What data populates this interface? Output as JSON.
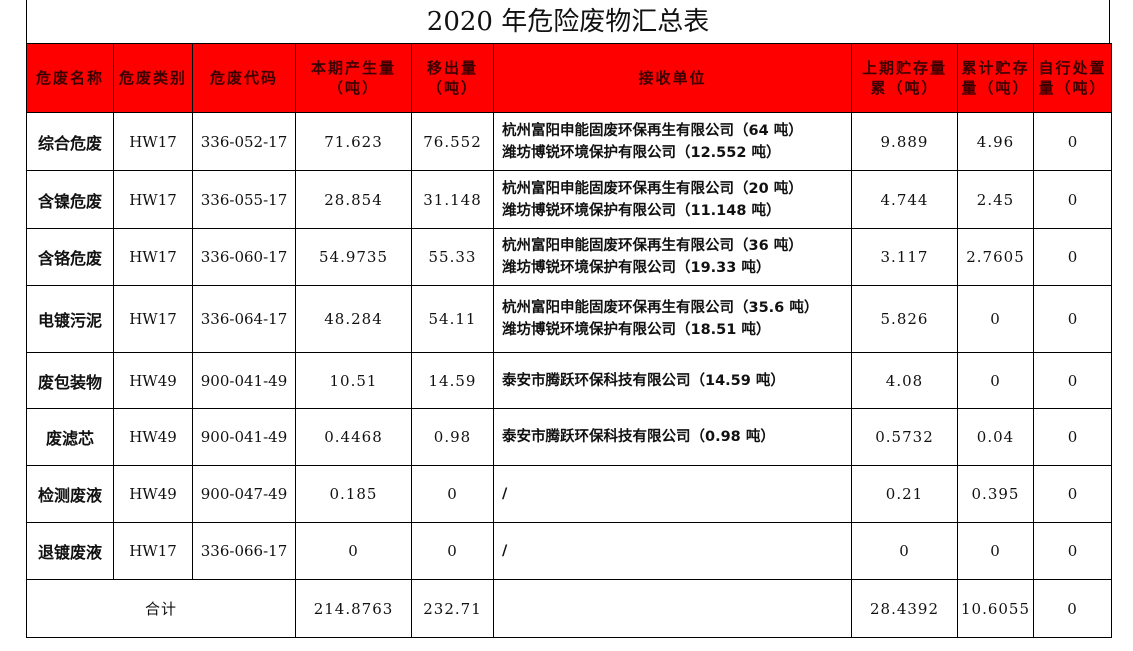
{
  "title": "2020 年危险废物汇总表",
  "headers": [
    "危废名称",
    "危废类别",
    "危废代码",
    "本期产生量（吨）",
    "移出量（吨）",
    "接收单位",
    "上期贮存量累（吨）",
    "累计贮存量（吨）",
    "自行处置量（吨）"
  ],
  "rows": [
    {
      "name": "综合危废",
      "cat": "HW17",
      "code": "336-052-17",
      "produced": "71.623",
      "out": "76.552",
      "receivers": [
        "杭州富阳申能固废环保再生有限公司（64 吨）",
        "潍坊博锐环境保护有限公司（12.552 吨）"
      ],
      "prev": "9.889",
      "stored": "4.96",
      "self": "0"
    },
    {
      "name": "含镍危废",
      "cat": "HW17",
      "code": "336-055-17",
      "produced": "28.854",
      "out": "31.148",
      "receivers": [
        "杭州富阳申能固废环保再生有限公司（20 吨）",
        "潍坊博锐环境保护有限公司（11.148 吨）"
      ],
      "prev": "4.744",
      "stored": "2.45",
      "self": "0"
    },
    {
      "name": "含铬危废",
      "cat": "HW17",
      "code": "336-060-17",
      "produced": "54.9735",
      "out": "55.33",
      "receivers": [
        "杭州富阳申能固废环保再生有限公司（36 吨）",
        "潍坊博锐环境保护有限公司（19.33 吨）"
      ],
      "prev": "3.117",
      "stored": "2.7605",
      "self": "0"
    },
    {
      "name": "电镀污泥",
      "cat": "HW17",
      "code": "336-064-17",
      "produced": "48.284",
      "out": "54.11",
      "receivers": [
        "杭州富阳申能固废环保再生有限公司（35.6 吨）",
        "潍坊博锐环境保护有限公司（18.51 吨）"
      ],
      "prev": "5.826",
      "stored": "0",
      "self": "0"
    },
    {
      "name": "废包装物",
      "cat": "HW49",
      "code": "900-041-49",
      "produced": "10.51",
      "out": "14.59",
      "receivers": [
        "泰安市腾跃环保科技有限公司（14.59 吨）"
      ],
      "prev": "4.08",
      "stored": "0",
      "self": "0"
    },
    {
      "name": "废滤芯",
      "cat": "HW49",
      "code": "900-041-49",
      "produced": "0.4468",
      "out": "0.98",
      "receivers": [
        "泰安市腾跃环保科技有限公司（0.98 吨）"
      ],
      "prev": "0.5732",
      "stored": "0.04",
      "self": "0"
    },
    {
      "name": "检测废液",
      "cat": "HW49",
      "code": "900-047-49",
      "produced": "0.185",
      "out": "0",
      "receivers": [
        "/"
      ],
      "prev": "0.21",
      "stored": "0.395",
      "self": "0"
    },
    {
      "name": "退镀废液",
      "cat": "HW17",
      "code": "336-066-17",
      "produced": "0",
      "out": "0",
      "receivers": [
        "/"
      ],
      "prev": "0",
      "stored": "0",
      "self": "0"
    }
  ],
  "total": {
    "label": "合计",
    "produced": "214.8763",
    "out": "232.71",
    "receivers": "",
    "prev": "28.4392",
    "stored": "10.6055",
    "self": "0"
  }
}
